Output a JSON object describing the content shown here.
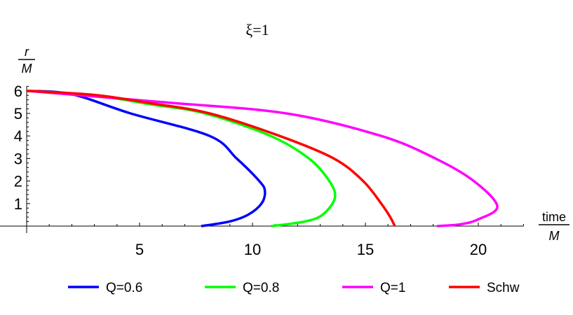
{
  "chart_data": {
    "type": "line",
    "title": "ξ=1",
    "xlabel": {
      "numerator": "time",
      "denominator": "M"
    },
    "ylabel": {
      "numerator": "r",
      "denominator": "M"
    },
    "xlim": [
      0,
      22
    ],
    "ylim": [
      0,
      6.2
    ],
    "x_ticks": [
      5,
      10,
      15,
      20
    ],
    "y_ticks": [
      1,
      2,
      3,
      4,
      5,
      6
    ],
    "grid": false,
    "legend_position": "bottom",
    "series": [
      {
        "name": "Q=0.6",
        "color": "#0000ff",
        "points": [
          [
            0,
            6
          ],
          [
            2,
            5.85
          ],
          [
            4.6,
            5
          ],
          [
            8.1,
            4
          ],
          [
            9.3,
            3
          ],
          [
            10.3,
            2
          ],
          [
            10.55,
            1.56
          ],
          [
            10.4,
            1
          ],
          [
            9.8,
            0.5
          ],
          [
            8.97,
            0.2
          ],
          [
            7.73,
            0
          ]
        ]
      },
      {
        "name": "Q=0.8",
        "color": "#00ff00",
        "points": [
          [
            0,
            6
          ],
          [
            3,
            5.8
          ],
          [
            5.5,
            5.4
          ],
          [
            7.9,
            5
          ],
          [
            10.8,
            4
          ],
          [
            12.5,
            3
          ],
          [
            13.4,
            2
          ],
          [
            13.65,
            1.25
          ],
          [
            13.1,
            0.5
          ],
          [
            12.3,
            0.2
          ],
          [
            10.83,
            0
          ]
        ]
      },
      {
        "name": "Q=1",
        "color": "#ff00ff",
        "points": [
          [
            0,
            6
          ],
          [
            6,
            5.5
          ],
          [
            11.5,
            5
          ],
          [
            15.7,
            4
          ],
          [
            18.1,
            3
          ],
          [
            19.8,
            2
          ],
          [
            20.84,
            0.88
          ],
          [
            20.0,
            0.3
          ],
          [
            19.2,
            0.08
          ],
          [
            18.17,
            0
          ]
        ]
      },
      {
        "name": "Schw",
        "color": "#ff0000",
        "points": [
          [
            0,
            6
          ],
          [
            3,
            5.82
          ],
          [
            5.5,
            5.45
          ],
          [
            8.1,
            5
          ],
          [
            11.2,
            4
          ],
          [
            13.6,
            3
          ],
          [
            14.9,
            2
          ],
          [
            15.7,
            1
          ],
          [
            16.1,
            0.4
          ],
          [
            16.3,
            0
          ]
        ]
      }
    ]
  }
}
